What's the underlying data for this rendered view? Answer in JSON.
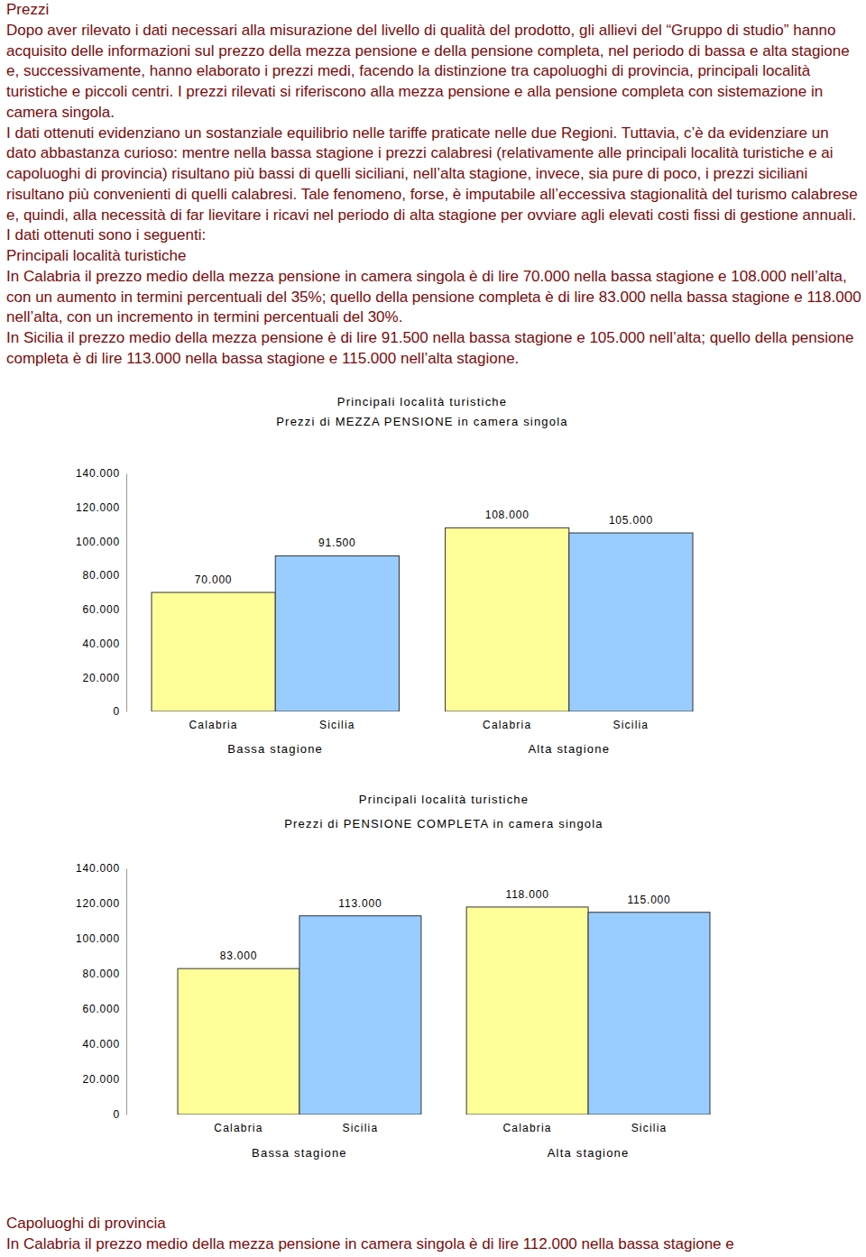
{
  "document": {
    "text_top": [
      "Prezzi",
      "Dopo aver rilevato i dati necessari alla misurazione del livello di qualità del prodotto, gli allievi del “Gruppo di studio” hanno acquisito delle informazioni sul prezzo della mezza pensione e della pensione completa, nel periodo di bassa e alta stagione e, successivamente, hanno elaborato i prezzi medi, facendo la distinzione tra capoluoghi di provincia, principali località turistiche e piccoli centri. I prezzi rilevati si riferiscono alla mezza pensione e alla pensione completa con sistemazione in camera singola.",
      "I dati ottenuti evidenziano un sostanziale equilibrio nelle tariffe praticate nelle due Regioni. Tuttavia, c’è da evidenziare un dato abbastanza curioso: mentre nella bassa stagione i prezzi calabresi (relativamente alle principali località turistiche e ai capoluoghi di provincia) risultano più bassi di quelli siciliani, nell’alta stagione, invece, sia pure di poco, i prezzi siciliani risultano più convenienti di quelli calabresi. Tale fenomeno, forse, è imputabile all’eccessiva stagionalità del turismo calabrese e, quindi, alla necessità di far lievitare i ricavi nel periodo di alta stagione per ovviare agli elevati costi fissi di gestione annuali.",
      "I dati ottenuti sono i seguenti:",
      "Principali località turistiche",
      "In Calabria il prezzo medio della mezza pensione in camera singola è di lire 70.000 nella bassa stagione e 108.000 nell’alta, con un aumento in termini percentuali del 35%; quello della pensione completa è di lire 83.000 nella bassa stagione e 118.000 nell’alta, con un incremento in termini percentuali del 30%.",
      "In Sicilia il prezzo medio della mezza pensione è di lire 91.500 nella bassa stagione e 105.000 nell’alta; quello della pensione completa è di lire 113.000 nella bassa stagione e 115.000 nell’alta stagione."
    ],
    "text_bottom": [
      "Capoluoghi di provincia",
      "In Calabria il prezzo medio della mezza pensione in camera singola è di lire 112.000 nella bassa stagione e"
    ]
  },
  "chart_data": [
    {
      "type": "bar",
      "title": "Principali località turistiche",
      "subtitle": "Prezzi di MEZZA PENSIONE in camera singola",
      "categories": [
        "Bassa stagione",
        "Alta stagione"
      ],
      "series": [
        {
          "name": "Calabria",
          "color": "#ffff99",
          "values": [
            70000,
            108000
          ],
          "value_labels": [
            "70.000",
            "108.000"
          ]
        },
        {
          "name": "Sicilia",
          "color": "#99ccff",
          "values": [
            91500,
            105000
          ],
          "value_labels": [
            "91.500",
            "105.000"
          ]
        }
      ],
      "ylim": [
        0,
        140000
      ],
      "yticks": [
        0,
        {
          "value": 20000,
          "label": "20.000"
        },
        {
          "value": 40000,
          "label": "40.000"
        },
        {
          "value": 60000,
          "label": "60.000"
        },
        {
          "value": 80000,
          "label": "80.000"
        },
        {
          "value": 100000,
          "label": "100.000"
        },
        {
          "value": 120000,
          "label": "120.000"
        },
        {
          "value": 140000,
          "label": "140.000"
        }
      ],
      "grid": false,
      "data_labels": true
    },
    {
      "type": "bar",
      "title": "Principali località turistiche",
      "subtitle": "Prezzi di PENSIONE COMPLETA in camera singola",
      "categories": [
        "Bassa stagione",
        "Alta stagione"
      ],
      "series": [
        {
          "name": "Calabria",
          "color": "#ffff99",
          "values": [
            83000,
            118000
          ],
          "value_labels": [
            "83.000",
            "118.000"
          ]
        },
        {
          "name": "Sicilia",
          "color": "#99ccff",
          "values": [
            113000,
            115000
          ],
          "value_labels": [
            "113.000",
            "115.000"
          ]
        }
      ],
      "ylim": [
        0,
        140000
      ],
      "yticks": [
        0,
        {
          "value": 20000,
          "label": "20.000"
        },
        {
          "value": 40000,
          "label": "40.000"
        },
        {
          "value": 60000,
          "label": "60.000"
        },
        {
          "value": 80000,
          "label": "80.000"
        },
        {
          "value": 100000,
          "label": "100.000"
        },
        {
          "value": 120000,
          "label": "120.000"
        },
        {
          "value": 140000,
          "label": "140.000"
        }
      ],
      "grid": false,
      "data_labels": true
    }
  ]
}
